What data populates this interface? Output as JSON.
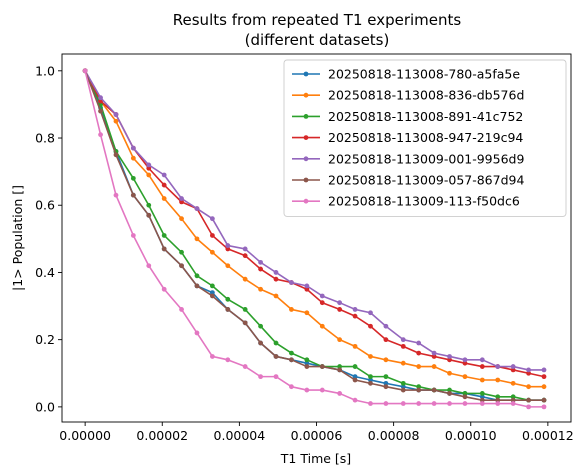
{
  "chart_data": {
    "type": "line",
    "title_line1": "Results from repeated T1 experiments",
    "title_line2": "(different datasets)",
    "xlabel": "T1 Time [s]",
    "ylabel": "|1> Population []",
    "xlim": [
      -6e-06,
      0.000126
    ],
    "ylim": [
      -0.045,
      1.05
    ],
    "x_ticks": [
      0,
      2e-05,
      4e-05,
      6e-05,
      8e-05,
      0.0001,
      0.00012
    ],
    "x_tick_labels": [
      "0.00000",
      "0.00002",
      "0.00004",
      "0.00006",
      "0.00008",
      "0.00010",
      "0.00012"
    ],
    "y_ticks": [
      0,
      0.2,
      0.4,
      0.6,
      0.8,
      1.0
    ],
    "y_tick_labels": [
      "0.0",
      "0.2",
      "0.4",
      "0.6",
      "0.8",
      "1.0"
    ],
    "grid": false,
    "legend_position": "top-right",
    "x": [
      0,
      4e-06,
      8e-06,
      1.25e-05,
      1.65e-05,
      2.05e-05,
      2.5e-05,
      2.9e-05,
      3.3e-05,
      3.7e-05,
      4.15e-05,
      4.55e-05,
      4.95e-05,
      5.35e-05,
      5.75e-05,
      6.15e-05,
      6.6e-05,
      7e-05,
      7.4e-05,
      7.8e-05,
      8.25e-05,
      8.65e-05,
      9.05e-05,
      9.45e-05,
      9.85e-05,
      0.000103,
      0.000107,
      0.000111,
      0.000115,
      0.000119
    ],
    "series": [
      {
        "name": "20250818-113008-780-a5fa5e",
        "color": "#1f77b4",
        "values": [
          1.0,
          0.89,
          0.76,
          0.63,
          0.57,
          0.47,
          0.42,
          0.36,
          0.34,
          0.29,
          0.25,
          0.19,
          0.15,
          0.14,
          0.13,
          0.12,
          0.11,
          0.09,
          0.08,
          0.07,
          0.06,
          0.05,
          0.05,
          0.04,
          0.04,
          0.03,
          0.02,
          0.02,
          0.02,
          0.02
        ]
      },
      {
        "name": "20250818-113008-836-db576d",
        "color": "#ff7f0e",
        "values": [
          1.0,
          0.91,
          0.85,
          0.74,
          0.69,
          0.62,
          0.56,
          0.5,
          0.46,
          0.42,
          0.38,
          0.35,
          0.33,
          0.29,
          0.28,
          0.24,
          0.2,
          0.18,
          0.15,
          0.14,
          0.13,
          0.12,
          0.12,
          0.1,
          0.09,
          0.08,
          0.08,
          0.07,
          0.06,
          0.06
        ]
      },
      {
        "name": "20250818-113008-891-41c752",
        "color": "#2ca02c",
        "values": [
          1.0,
          0.9,
          0.76,
          0.68,
          0.6,
          0.51,
          0.46,
          0.39,
          0.36,
          0.32,
          0.29,
          0.24,
          0.19,
          0.16,
          0.14,
          0.12,
          0.12,
          0.12,
          0.09,
          0.09,
          0.07,
          0.06,
          0.05,
          0.05,
          0.04,
          0.04,
          0.03,
          0.03,
          0.02,
          0.02
        ]
      },
      {
        "name": "20250818-113008-947-219c94",
        "color": "#d62728",
        "values": [
          1.0,
          0.91,
          0.87,
          0.77,
          0.71,
          0.66,
          0.61,
          0.59,
          0.51,
          0.47,
          0.45,
          0.41,
          0.38,
          0.37,
          0.35,
          0.31,
          0.29,
          0.27,
          0.24,
          0.2,
          0.18,
          0.16,
          0.15,
          0.14,
          0.13,
          0.12,
          0.12,
          0.11,
          0.1,
          0.09
        ]
      },
      {
        "name": "20250818-113009-001-9956d9",
        "color": "#9467bd",
        "values": [
          1.0,
          0.92,
          0.87,
          0.77,
          0.72,
          0.69,
          0.62,
          0.59,
          0.56,
          0.48,
          0.47,
          0.43,
          0.4,
          0.37,
          0.36,
          0.33,
          0.31,
          0.29,
          0.28,
          0.24,
          0.2,
          0.19,
          0.16,
          0.15,
          0.14,
          0.14,
          0.12,
          0.12,
          0.11,
          0.11
        ]
      },
      {
        "name": "20250818-113009-057-867d94",
        "color": "#8c564b",
        "values": [
          1.0,
          0.88,
          0.75,
          0.63,
          0.57,
          0.47,
          0.42,
          0.36,
          0.33,
          0.29,
          0.25,
          0.19,
          0.15,
          0.14,
          0.12,
          0.12,
          0.11,
          0.08,
          0.07,
          0.06,
          0.05,
          0.05,
          0.05,
          0.04,
          0.03,
          0.02,
          0.02,
          0.02,
          0.02,
          0.02
        ]
      },
      {
        "name": "20250818-113009-113-f50dc6",
        "color": "#e377c2",
        "values": [
          1.0,
          0.81,
          0.63,
          0.51,
          0.42,
          0.35,
          0.29,
          0.22,
          0.15,
          0.14,
          0.12,
          0.09,
          0.09,
          0.06,
          0.05,
          0.05,
          0.04,
          0.02,
          0.01,
          0.01,
          0.01,
          0.01,
          0.01,
          0.01,
          0.01,
          0.01,
          0.01,
          0.01,
          0.0,
          0.0
        ]
      }
    ]
  }
}
